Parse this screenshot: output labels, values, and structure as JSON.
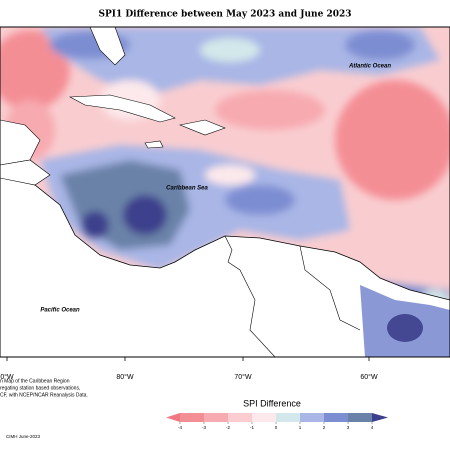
{
  "title": "SPI1 Difference between May 2023 and June 2023",
  "map_labels": [
    "Atlantic Ocean",
    "Caribbean Sea",
    "Pacific Ocean"
  ],
  "longitude_labels": [
    "0°W",
    "80°W",
    "70°W",
    "60°W"
  ],
  "footnote": [
    "n Map of the Caribbean Region",
    "regating station based observations,",
    "CF, with NCEP/NCAR Reanalysis Data."
  ],
  "credit": "CIMH June-2023",
  "colorbar": {
    "title": "SPI Difference",
    "lim": [
      -4,
      4
    ],
    "ticks": [
      -4,
      -3,
      -2,
      -1,
      0,
      1,
      2,
      3,
      4
    ],
    "extend": "both",
    "colors": [
      "#f07882",
      "#f48e95",
      "#f7aab0",
      "#fbcdd1",
      "#fde9eb",
      "#d3e8ea",
      "#a9b6e6",
      "#7d8dd2",
      "#6a82a8",
      "#3c3f8c"
    ]
  }
}
